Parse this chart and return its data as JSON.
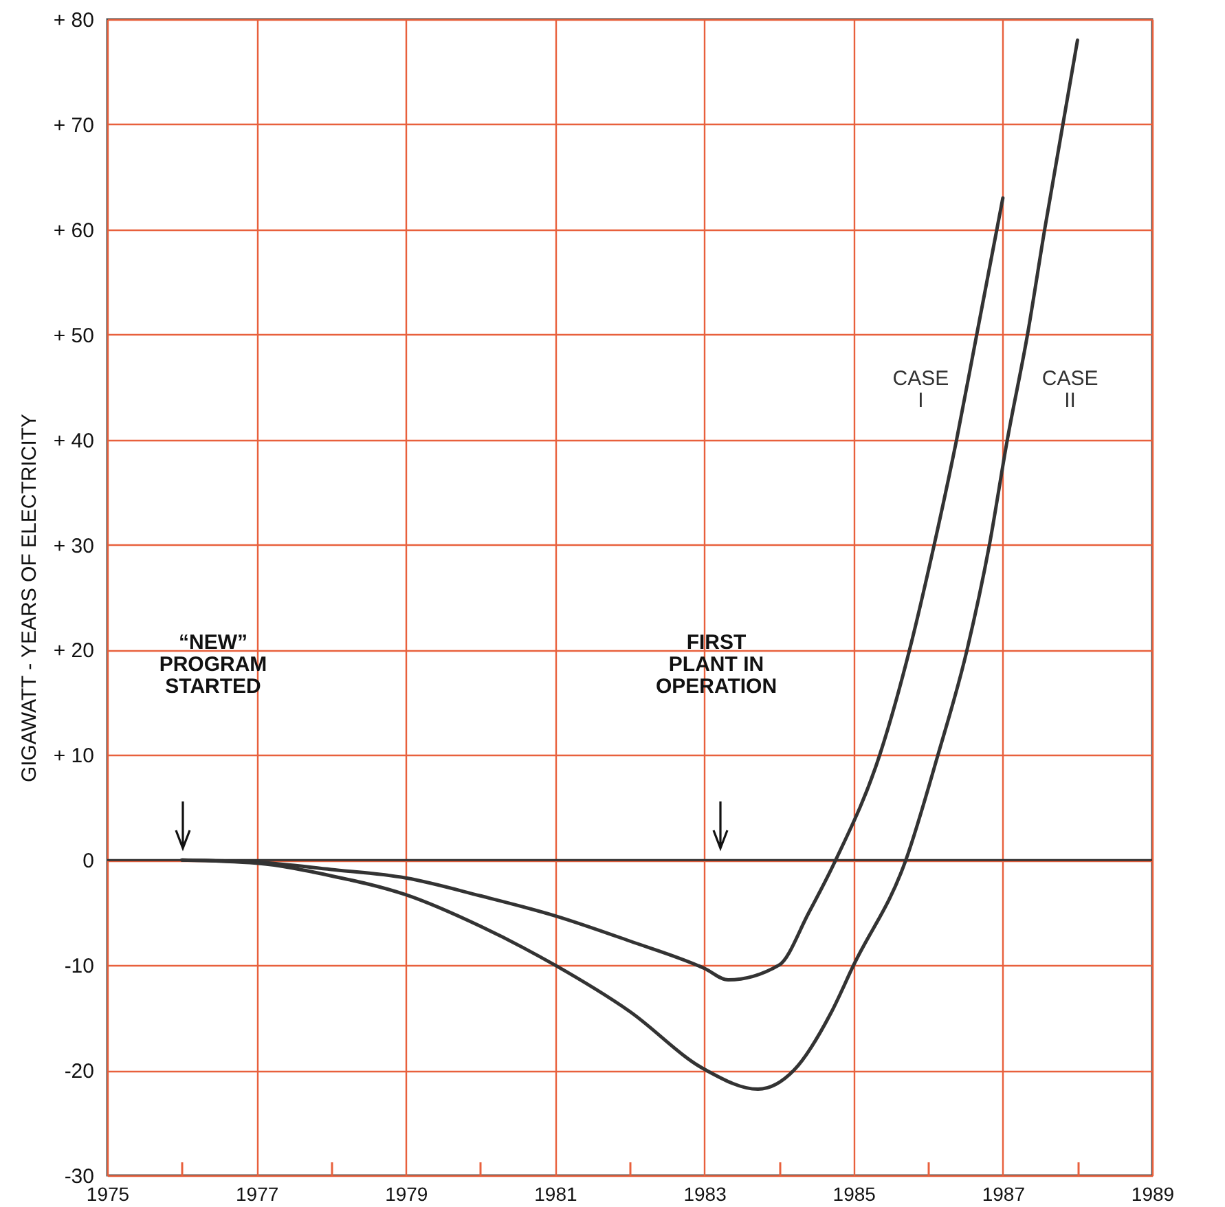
{
  "chart_data": {
    "type": "line",
    "ylabel": "GIGAWATT - YEARS OF ELECTRICITY",
    "xlim": [
      1975,
      1989
    ],
    "xticks": [
      1975,
      {
        "value": 1976,
        "label": null
      },
      1977,
      {
        "value": 1978,
        "label": null
      },
      1979,
      {
        "value": 1980,
        "label": null
      },
      1981,
      {
        "value": 1982,
        "label": null
      },
      1983,
      {
        "value": 1984,
        "label": null
      },
      1985,
      {
        "value": 1986,
        "label": null
      },
      1987,
      {
        "value": 1988,
        "label": null
      },
      1989
    ],
    "ylim": [
      -30,
      80
    ],
    "yticks": [
      -30,
      -20,
      -10,
      0,
      {
        "value": 10,
        "label": "+ 10"
      },
      {
        "value": 20,
        "label": "+ 20"
      },
      {
        "value": 30,
        "label": "+ 30"
      },
      {
        "value": 40,
        "label": "+ 40"
      },
      {
        "value": 50,
        "label": "+ 50"
      },
      {
        "value": 60,
        "label": "+ 60"
      },
      {
        "value": 70,
        "label": "+ 70"
      },
      {
        "value": 80,
        "label": "+ 80"
      }
    ],
    "grid": true,
    "ref_lines": [
      {
        "axis": "y",
        "value": 0,
        "color": "#333333"
      }
    ],
    "annotations": [
      "“NEW”\nPROGRAM\nSTARTED",
      "FIRST\nPLANT IN\nOPERATION"
    ],
    "series": [
      {
        "name": "CASE I",
        "color": "#333333",
        "x": [
          1976,
          1977,
          1978,
          1979,
          1980,
          1981,
          1982,
          1983,
          1983.32,
          1984,
          1984.4,
          1984.76,
          1985.35,
          1985.75,
          1986.08,
          1986.38,
          1986.65,
          1987
        ],
        "values": [
          0,
          -0.2,
          -0.9,
          -1.7,
          -3.4,
          -5.3,
          -7.7,
          -10.3,
          -11.4,
          -10,
          -5,
          0,
          10,
          20,
          30,
          40,
          50,
          63
        ]
      },
      {
        "name": "CASE II",
        "color": "#333333",
        "x": [
          1976,
          1977,
          1978,
          1979,
          1980,
          1981,
          1982,
          1983,
          1983.72,
          1984.2,
          1984.7,
          1985,
          1985.7,
          1986.13,
          1986.52,
          1986.82,
          1987.06,
          1987.33,
          1987.56,
          1988
        ],
        "values": [
          0,
          -0.3,
          -1.5,
          -3.3,
          -6.3,
          -10,
          -14.4,
          -19.9,
          -21.8,
          -20,
          -14.5,
          -10,
          0,
          10,
          20,
          30,
          40,
          50,
          60,
          78
        ]
      }
    ]
  }
}
